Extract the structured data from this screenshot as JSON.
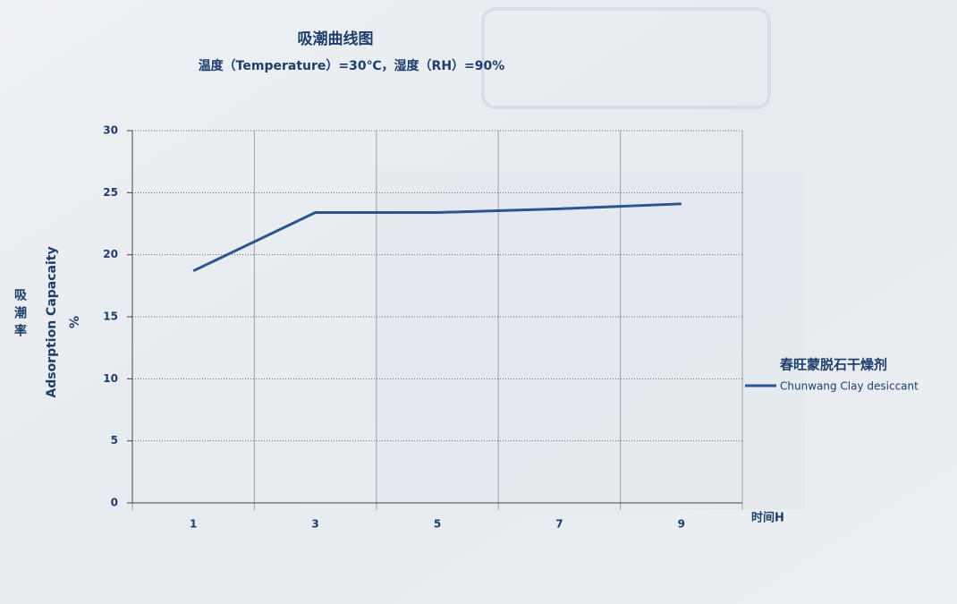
{
  "chart_data": {
    "type": "line",
    "title": "吸潮曲线图",
    "subtitle": "温度（Temperature）=30℃，湿度（RH）=90%",
    "ylabel_cn": "吸潮率",
    "ylabel_en": "Adsorption Capacaity",
    "ylabel_unit": "%",
    "xlabel": "时间H",
    "categories": [
      "1",
      "3",
      "5",
      "7",
      "9"
    ],
    "series": [
      {
        "name": "春旺蒙脱石干燥剂",
        "name_en": "Chunwang Clay desiccant",
        "color": "#2a5590",
        "values": [
          18.7,
          23.4,
          23.4,
          23.7,
          24.1
        ]
      }
    ],
    "ylim": [
      0,
      30
    ],
    "yticks": [
      0,
      5,
      10,
      15,
      20,
      25,
      30
    ],
    "grid": true,
    "legend": "right"
  }
}
